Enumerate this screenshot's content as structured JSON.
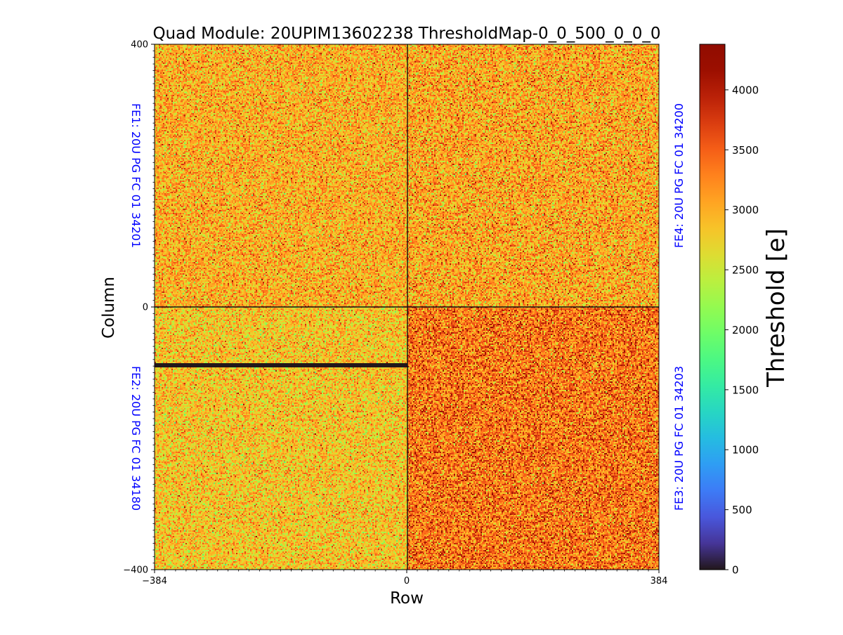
{
  "chart_data": {
    "type": "heatmap",
    "title": "Quad Module: 20UPIM13602238 ThresholdMap-0_0_500_0_0_0",
    "xlabel": "Row",
    "ylabel": "Column",
    "xlim": [
      -384,
      384
    ],
    "ylim": [
      -400,
      400
    ],
    "x_ticks": [
      {
        "value": -384,
        "label": "−384"
      },
      {
        "value": 0,
        "label": "0"
      },
      {
        "value": 384,
        "label": "384"
      }
    ],
    "y_ticks": [
      {
        "value": 400,
        "label": "400"
      },
      {
        "value": 0,
        "label": "0"
      },
      {
        "value": -400,
        "label": "−400"
      }
    ],
    "colorbar": {
      "label": "Threshold [e]",
      "colormap": "turbo",
      "range": [
        0,
        4380
      ],
      "ticks": [
        0,
        500,
        1000,
        1500,
        2000,
        2500,
        3000,
        3500,
        4000
      ],
      "tick_labels": [
        "0",
        "500",
        "1000",
        "1500",
        "2000",
        "2500",
        "3000",
        "3500",
        "4000"
      ]
    },
    "front_ends": [
      {
        "name": "FE1: 20U PG FC 01 34201",
        "position": "top-left",
        "x_range": [
          -384,
          0
        ],
        "y_range": [
          0,
          400
        ],
        "mean_threshold": 3000,
        "noise": 350
      },
      {
        "name": "FE2: 20U PG FC 01 34180",
        "position": "bottom-left",
        "x_range": [
          -384,
          0
        ],
        "y_range": [
          -400,
          0
        ],
        "mean_threshold": 2850,
        "noise": 350
      },
      {
        "name": "FE3: 20U PG FC 01 34203",
        "position": "bottom-right",
        "x_range": [
          0,
          384
        ],
        "y_range": [
          -400,
          0
        ],
        "mean_threshold": 3350,
        "noise": 400
      },
      {
        "name": "FE4: 20U PG FC 01 34200",
        "position": "top-right",
        "x_range": [
          0,
          384
        ],
        "y_range": [
          0,
          400
        ],
        "mean_threshold": 3050,
        "noise": 380
      }
    ],
    "dead_regions": [
      {
        "x_range": [
          -384,
          0
        ],
        "y_range": [
          -92,
          -85
        ],
        "value": 0
      }
    ],
    "label_color": "#0000ff"
  }
}
